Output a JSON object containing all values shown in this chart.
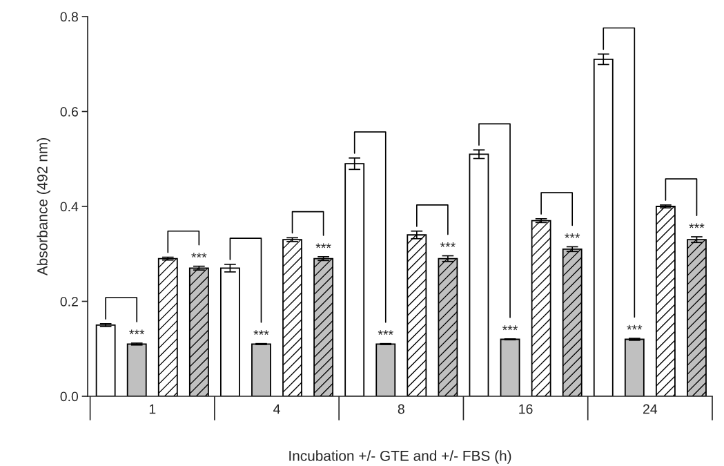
{
  "chart_data": {
    "type": "bar",
    "xlabel": "Incubation +/- GTE and +/- FBS (h)",
    "ylabel": "Absorbance (492 nm)",
    "categories": [
      "1",
      "4",
      "8",
      "16",
      "24"
    ],
    "series": [
      {
        "color": "#ffffff",
        "values": [
          0.15,
          0.27,
          0.49,
          0.51,
          0.71
        ],
        "errors": [
          0.003,
          0.008,
          0.012,
          0.009,
          0.011
        ]
      },
      {
        "color": "#c0c0c0",
        "values": [
          0.11,
          0.11,
          0.11,
          0.12,
          0.12
        ],
        "errors": [
          0.002,
          0.001,
          0.001,
          0.001,
          0.002
        ],
        "value_labels": [
          "***",
          "***",
          "***",
          "***",
          "***"
        ]
      },
      {
        "color": "#ffffff",
        "values": [
          0.29,
          0.33,
          0.34,
          0.37,
          0.4
        ],
        "errors": [
          0.003,
          0.004,
          0.008,
          0.004,
          0.003
        ]
      },
      {
        "color": "#c0c0c0",
        "values": [
          0.27,
          0.29,
          0.29,
          0.31,
          0.33
        ],
        "errors": [
          0.004,
          0.004,
          0.006,
          0.005,
          0.006
        ],
        "value_labels": [
          "***",
          "***",
          "***",
          "***",
          "***"
        ]
      }
    ],
    "ylim": [
      0,
      0.8
    ],
    "yticks": [
      {
        "value": 0,
        "label": "0.0"
      },
      0.2,
      0.4,
      0.6,
      0.8
    ],
    "grid": false,
    "legend": false
  }
}
